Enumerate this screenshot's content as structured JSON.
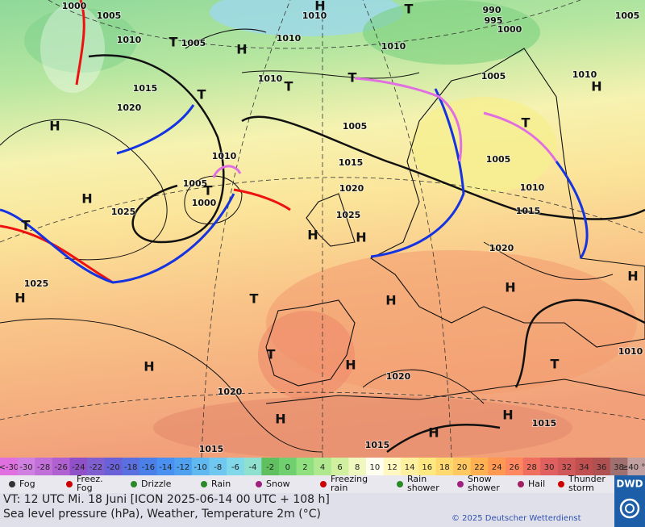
{
  "map": {
    "pressure_labels": [
      "1000",
      "1005",
      "1010",
      "1015",
      "1020",
      "1025",
      "1025",
      "1010",
      "1005",
      "1000",
      "1005",
      "1010",
      "1010",
      "1010",
      "1010",
      "1005",
      "1015",
      "1020",
      "1025",
      "1005",
      "1010",
      "1015",
      "1020",
      "1005",
      "1010",
      "1005",
      "990",
      "995",
      "1000",
      "1020",
      "1020",
      "1015",
      "1015",
      "1015",
      "1010"
    ],
    "symbols": [
      "H",
      "H",
      "H",
      "H",
      "H",
      "H",
      "H",
      "H",
      "H",
      "H",
      "H",
      "H",
      "H",
      "H",
      "H",
      "H",
      "T",
      "T",
      "T",
      "T",
      "T",
      "T",
      "T",
      "T",
      "T",
      "T",
      "T"
    ]
  },
  "legend": {
    "temperature_scale": [
      "<-30",
      -30,
      -28,
      -26,
      -24,
      -22,
      -20,
      -18,
      -16,
      -14,
      -12,
      -10,
      -8,
      -6,
      -4,
      -2,
      0,
      2,
      4,
      6,
      8,
      10,
      12,
      14,
      16,
      18,
      20,
      22,
      24,
      26,
      28,
      30,
      32,
      34,
      36,
      38,
      "≥40 °C"
    ],
    "temperature_colors": [
      "#e070e0",
      "#d080e0",
      "#c070d8",
      "#b060d0",
      "#9050c8",
      "#8060d0",
      "#6a60d8",
      "#5a70e0",
      "#4a80e8",
      "#4a90f0",
      "#50a0f0",
      "#60b8f0",
      "#70c8f0",
      "#80d8e8",
      "#90e0d0",
      "#60c060",
      "#70d070",
      "#90e080",
      "#b0e890",
      "#d0f0a0",
      "#f0f8c0",
      "#fffff0",
      "#fff8c0",
      "#fff0a0",
      "#ffe880",
      "#ffd870",
      "#ffc860",
      "#ffb050",
      "#ff9850",
      "#ff8860",
      "#f07060",
      "#e06060",
      "#d05858",
      "#c05050",
      "#b05050",
      "#a07070",
      "#c0a0a0"
    ],
    "weather": [
      "Fog",
      "Freez. Fog",
      "Drizzle",
      "Rain",
      "Snow",
      "Freezing rain",
      "Rain shower",
      "Snow shower",
      "Hail",
      "Thunder storm"
    ]
  },
  "footer": {
    "valid_time": "VT: 12 UTC Mi.  18 Juni [ICON 2025-06-14  00 UTC + 108 h]",
    "description": "Sea level pressure (hPa), Weather, Temperature 2m (°C)",
    "copyright": "© 2025 Deutscher Wetterdienst",
    "logo": "DWD"
  }
}
